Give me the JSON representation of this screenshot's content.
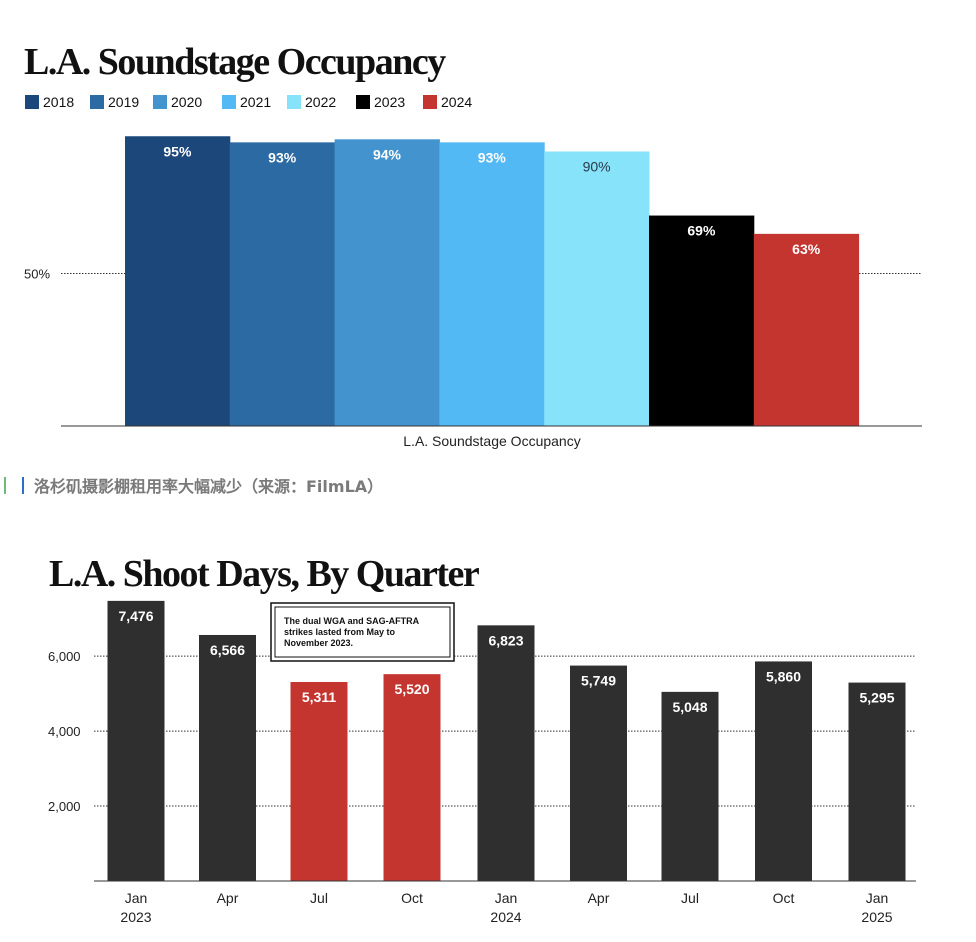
{
  "caption": "洛杉矶摄影棚租用率大幅减少（来源：FilmLA）",
  "chart_data": [
    {
      "type": "bar",
      "title": "L.A. Soundstage Occupancy",
      "xlabel": "L.A. Soundstage Occupancy",
      "ylabel": "",
      "ylim": [
        0,
        100
      ],
      "yticks": [
        {
          "value": 50,
          "label": "50%"
        }
      ],
      "legend": "top-left",
      "series": [
        {
          "name": "2018",
          "value": 95,
          "label": "95%",
          "color": "#1b477a"
        },
        {
          "name": "2019",
          "value": 93,
          "label": "93%",
          "color": "#2b6aa3"
        },
        {
          "name": "2020",
          "value": 94,
          "label": "94%",
          "color": "#4393cf"
        },
        {
          "name": "2021",
          "value": 93,
          "label": "93%",
          "color": "#52b9f4"
        },
        {
          "name": "2022",
          "value": 90,
          "label": "90%",
          "color": "#86e3f9"
        },
        {
          "name": "2023",
          "value": 69,
          "label": "69%",
          "color": "#000000"
        },
        {
          "name": "2024",
          "value": 63,
          "label": "63%",
          "color": "#c53530"
        }
      ]
    },
    {
      "type": "bar",
      "title": "L.A. Shoot Days, By Quarter",
      "xlabel": "",
      "ylabel": "",
      "ylim": [
        0,
        7476
      ],
      "yticks": [
        {
          "value": 2000,
          "label": "2,000"
        },
        {
          "value": 4000,
          "label": "4,000"
        },
        {
          "value": 6000,
          "label": "6,000"
        }
      ],
      "annotation": [
        "The dual WGA and SAG-AFTRA",
        "strikes lasted from May to",
        "November 2023."
      ],
      "categories": [
        {
          "label": "Jan",
          "year": "2023"
        },
        {
          "label": "Apr",
          "year": ""
        },
        {
          "label": "Jul",
          "year": ""
        },
        {
          "label": "Oct",
          "year": ""
        },
        {
          "label": "Jan",
          "year": "2024"
        },
        {
          "label": "Apr",
          "year": ""
        },
        {
          "label": "Jul",
          "year": ""
        },
        {
          "label": "Oct",
          "year": ""
        },
        {
          "label": "Jan",
          "year": "2025"
        }
      ],
      "values": [
        7476,
        6566,
        5311,
        5520,
        6823,
        5749,
        5048,
        5860,
        5295
      ],
      "value_labels": [
        "7,476",
        "6,566",
        "5,311",
        "5,520",
        "6,823",
        "5,749",
        "5,048",
        "5,860",
        "5,295"
      ],
      "colors": [
        "#2f2f2f",
        "#2f2f2f",
        "#c53530",
        "#c53530",
        "#2f2f2f",
        "#2f2f2f",
        "#2f2f2f",
        "#2f2f2f",
        "#2f2f2f"
      ]
    }
  ]
}
